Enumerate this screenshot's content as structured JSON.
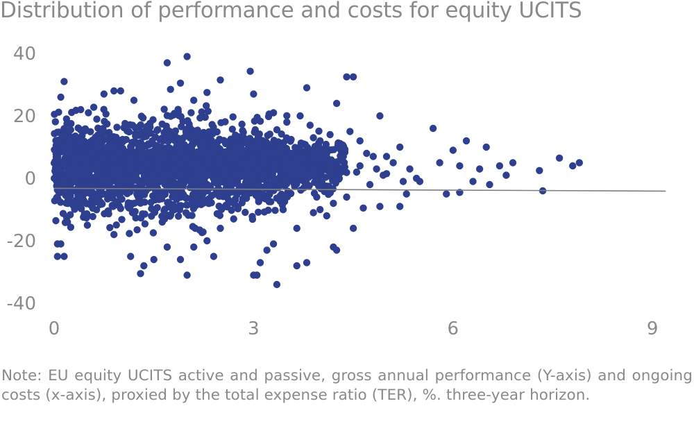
{
  "chart_data": {
    "type": "scatter",
    "title": "Distribution of performance and costs for equity UCITS",
    "note": "Note: EU equity UCITS active and passive, gross annual performance (Y-axis) and ongoing costs (x-axis), proxied by the total expense ratio (TER), %. three-year horizon.",
    "xlabel": "",
    "ylabel": "",
    "xlim": [
      0,
      9.2
    ],
    "ylim": [
      -40,
      42
    ],
    "xticks": [
      0,
      3,
      6,
      9
    ],
    "yticks": [
      -40,
      -20,
      0,
      20,
      40
    ],
    "grid": false,
    "legend": "none",
    "trendline": {
      "x": [
        0,
        9.2
      ],
      "y": [
        -3.2,
        -4.1
      ]
    },
    "marker_color": "#2E3F8F",
    "trendline_color": "#7f7f7f",
    "cloud": {
      "x_range": [
        0,
        4.4
      ],
      "y_center_range": [
        0,
        5
      ],
      "point_count_estimate": 2400
    },
    "series": [
      {
        "points": [
          [
            2.0,
            39.0
          ],
          [
            1.7,
            37.0
          ],
          [
            2.95,
            34.3
          ],
          [
            0.15,
            31.0
          ],
          [
            2.5,
            31.5
          ],
          [
            4.4,
            32.5
          ],
          [
            4.5,
            32.5
          ],
          [
            1.9,
            30.5
          ],
          [
            3.8,
            29.0
          ],
          [
            1.0,
            28.0
          ],
          [
            0.9,
            28.0
          ],
          [
            1.75,
            28.5
          ],
          [
            0.75,
            27.0
          ],
          [
            2.3,
            27.5
          ],
          [
            0.1,
            26.0
          ],
          [
            3.0,
            27.0
          ],
          [
            4.25,
            24.0
          ],
          [
            0.4,
            22.0
          ],
          [
            1.2,
            25.0
          ],
          [
            2.1,
            25.0
          ],
          [
            4.9,
            20.0
          ],
          [
            5.7,
            16.0
          ],
          [
            6.2,
            12.0
          ],
          [
            5.2,
            10.0
          ],
          [
            6.5,
            10.0
          ],
          [
            5.0,
            7.0
          ],
          [
            5.8,
            5.0
          ],
          [
            6.0,
            9.0
          ],
          [
            6.1,
            4.0
          ],
          [
            6.4,
            3.0
          ],
          [
            6.7,
            4.0
          ],
          [
            6.8,
            1.0
          ],
          [
            6.9,
            5.0
          ],
          [
            7.3,
            2.5
          ],
          [
            7.6,
            6.5
          ],
          [
            7.9,
            5.0
          ],
          [
            7.8,
            4.0
          ],
          [
            7.35,
            -4.0
          ],
          [
            6.55,
            -2.0
          ],
          [
            6.1,
            -4.5
          ],
          [
            5.9,
            -5.0
          ],
          [
            6.3,
            -1.0
          ],
          [
            5.3,
            -5.0
          ],
          [
            5.2,
            -9.0
          ],
          [
            4.9,
            -9.0
          ],
          [
            4.65,
            -9.5
          ],
          [
            4.5,
            -16.0
          ],
          [
            4.25,
            -23.0
          ],
          [
            4.2,
            -22.0
          ],
          [
            3.8,
            -27.0
          ],
          [
            3.65,
            -28.0
          ],
          [
            3.35,
            -34.0
          ],
          [
            3.0,
            -31.0
          ],
          [
            3.05,
            -31.0
          ],
          [
            2.0,
            -31.0
          ],
          [
            1.3,
            -30.5
          ],
          [
            1.35,
            -28.0
          ],
          [
            1.15,
            -25.0
          ],
          [
            0.15,
            -25.0
          ],
          [
            0.05,
            -25.0
          ],
          [
            0.05,
            -21.0
          ],
          [
            0.1,
            -21.0
          ],
          [
            3.1,
            -27.0
          ],
          [
            2.4,
            -25.0
          ],
          [
            1.9,
            -26.0
          ],
          [
            1.5,
            -26.0
          ],
          [
            3.3,
            -21.0
          ],
          [
            3.2,
            -23.0
          ],
          [
            2.1,
            -22.0
          ],
          [
            1.7,
            -22.0
          ],
          [
            0.9,
            -18.0
          ],
          [
            3.65,
            -16.0
          ],
          [
            4.1,
            -12.0
          ],
          [
            3.9,
            -11.0
          ],
          [
            3.95,
            -6.0
          ],
          [
            2.3,
            -20.0
          ],
          [
            2.5,
            -16.0
          ],
          [
            2.7,
            -13.0
          ],
          [
            0.5,
            -15.0
          ],
          [
            0.2,
            -14.0
          ],
          [
            4.8,
            7.0
          ],
          [
            4.6,
            12.0
          ],
          [
            4.45,
            15.0
          ],
          [
            4.7,
            8.0
          ],
          [
            5.1,
            5.0
          ],
          [
            5.35,
            3.0
          ],
          [
            5.5,
            -1.0
          ],
          [
            4.3,
            11.0
          ],
          [
            4.0,
            12.0
          ],
          [
            3.9,
            13.0
          ],
          [
            3.7,
            20.0
          ],
          [
            3.5,
            18.0
          ],
          [
            3.3,
            21.0
          ],
          [
            4.15,
            14.0
          ],
          [
            3.85,
            17.0
          ],
          [
            4.55,
            2.0
          ],
          [
            4.95,
            1.0
          ],
          [
            5.25,
            -1.0
          ],
          [
            4.75,
            -2.0
          ],
          [
            4.4,
            -6.0
          ],
          [
            4.2,
            -8.0
          ],
          [
            4.0,
            -10.0
          ],
          [
            5.45,
            0.0
          ],
          [
            5.0,
            1.5
          ],
          [
            4.85,
            3.0
          ],
          [
            4.6,
            4.0
          ],
          [
            4.35,
            7.0
          ],
          [
            4.1,
            8.0
          ],
          [
            3.95,
            9.0
          ],
          [
            3.75,
            11.0
          ]
        ]
      }
    ]
  }
}
